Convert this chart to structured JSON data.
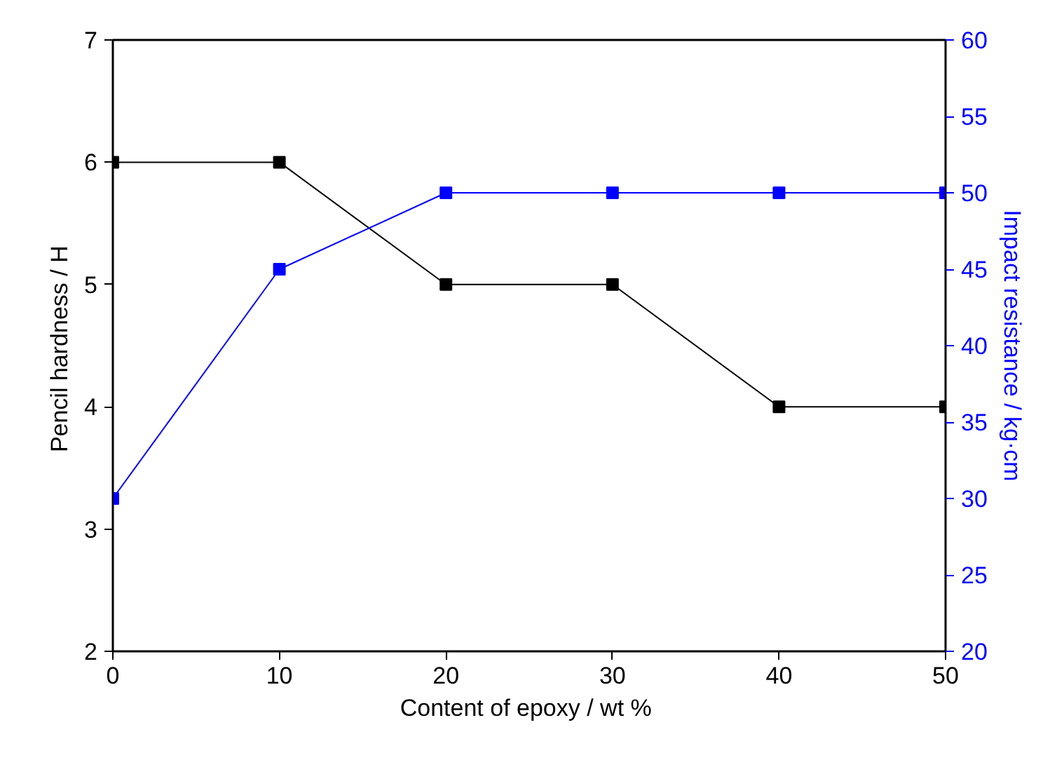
{
  "chart_data": {
    "type": "line",
    "xlabel": "Content of epoxy  / wt %",
    "ylabel": "Pencil hardness  / H",
    "y2label": "Impact resistance / kg·cm",
    "x": [
      0,
      10,
      20,
      30,
      40,
      50
    ],
    "series": [
      {
        "color": "#000000",
        "values": [
          6,
          6,
          5,
          5,
          4,
          4
        ]
      },
      {
        "color": "#0000ff",
        "values": [
          30,
          45,
          50,
          50,
          50,
          50
        ],
        "axis": "y2"
      }
    ],
    "xlim": [
      0,
      50
    ],
    "xticks": [
      0,
      10,
      20,
      30,
      40,
      50
    ],
    "ylim": [
      2,
      7
    ],
    "yticks": [
      2,
      3,
      4,
      5,
      6,
      7
    ],
    "y2lim": [
      20,
      60
    ],
    "y2ticks": [
      20,
      25,
      30,
      35,
      40,
      45,
      50,
      55,
      60
    ],
    "grid": false,
    "marker": "square",
    "line_style": "solid"
  }
}
